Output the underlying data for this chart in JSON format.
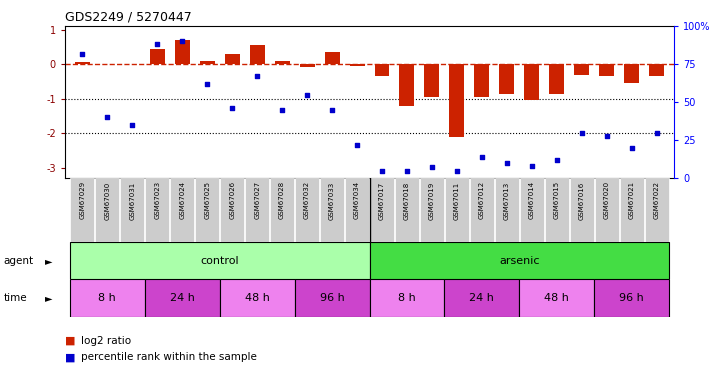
{
  "title": "GDS2249 / 5270447",
  "samples": [
    "GSM67029",
    "GSM67030",
    "GSM67031",
    "GSM67023",
    "GSM67024",
    "GSM67025",
    "GSM67026",
    "GSM67027",
    "GSM67028",
    "GSM67032",
    "GSM67033",
    "GSM67034",
    "GSM67017",
    "GSM67018",
    "GSM67019",
    "GSM67011",
    "GSM67012",
    "GSM67013",
    "GSM67014",
    "GSM67015",
    "GSM67016",
    "GSM67020",
    "GSM67021",
    "GSM67022"
  ],
  "log2_ratio": [
    0.05,
    0.02,
    0.02,
    0.45,
    0.7,
    0.1,
    0.3,
    0.55,
    0.1,
    -0.07,
    0.35,
    -0.05,
    -0.35,
    -1.2,
    -0.95,
    -2.1,
    -0.95,
    -0.85,
    -1.05,
    -0.85,
    -0.3,
    -0.35,
    -0.55,
    -0.35
  ],
  "percentile": [
    82,
    40,
    35,
    88,
    90,
    62,
    46,
    67,
    45,
    55,
    45,
    22,
    5,
    5,
    7,
    5,
    14,
    10,
    8,
    12,
    30,
    28,
    20,
    30
  ],
  "agent_groups": [
    {
      "label": "control",
      "start": 0,
      "end": 12,
      "color": "#AAFFAA"
    },
    {
      "label": "arsenic",
      "start": 12,
      "end": 24,
      "color": "#44DD44"
    }
  ],
  "time_groups": [
    {
      "label": "8 h",
      "start": 0,
      "end": 3,
      "color": "#EE82EE"
    },
    {
      "label": "24 h",
      "start": 3,
      "end": 6,
      "color": "#CC44CC"
    },
    {
      "label": "48 h",
      "start": 6,
      "end": 9,
      "color": "#EE82EE"
    },
    {
      "label": "96 h",
      "start": 9,
      "end": 12,
      "color": "#CC44CC"
    },
    {
      "label": "8 h",
      "start": 12,
      "end": 15,
      "color": "#EE82EE"
    },
    {
      "label": "24 h",
      "start": 15,
      "end": 18,
      "color": "#CC44CC"
    },
    {
      "label": "48 h",
      "start": 18,
      "end": 21,
      "color": "#EE82EE"
    },
    {
      "label": "96 h",
      "start": 21,
      "end": 24,
      "color": "#CC44CC"
    }
  ],
  "bar_color": "#CC2200",
  "dot_color": "#0000CC",
  "dashed_line_color": "#CC2200",
  "ylim_left": [
    -3.3,
    1.1
  ],
  "ylim_right": [
    0,
    100
  ],
  "yticks_left": [
    1,
    0,
    -1,
    -2,
    -3
  ],
  "yticks_right": [
    0,
    25,
    50,
    75,
    100
  ],
  "dotted_lines": [
    -1.0,
    -2.0
  ],
  "bar_width": 0.6,
  "label_gray": "#CCCCCC",
  "legend_items": [
    {
      "color": "#CC2200",
      "type": "bar",
      "label": "log2 ratio"
    },
    {
      "color": "#0000CC",
      "type": "square",
      "label": "percentile rank within the sample"
    }
  ]
}
